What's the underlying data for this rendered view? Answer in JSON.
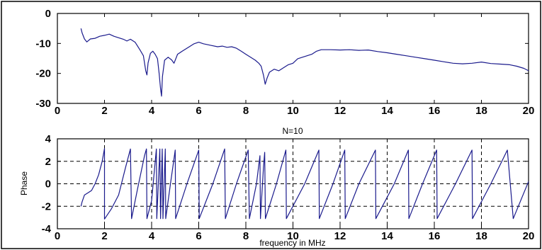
{
  "chart_data": [
    {
      "type": "line",
      "title": "",
      "xlabel": "",
      "ylabel": "",
      "xlim": [
        0,
        20
      ],
      "ylim": [
        -30,
        0
      ],
      "xticks": [
        0,
        2,
        4,
        6,
        8,
        10,
        12,
        14,
        16,
        18,
        20
      ],
      "yticks": [
        0,
        -10,
        -20,
        -30
      ],
      "grid": false,
      "series": [
        {
          "color": "#1a1a8c",
          "points": [
            [
              1.0,
              -5
            ],
            [
              1.05,
              -6.5
            ],
            [
              1.15,
              -8.5
            ],
            [
              1.25,
              -9.5
            ],
            [
              1.4,
              -8.5
            ],
            [
              1.6,
              -8.3
            ],
            [
              1.8,
              -7.6
            ],
            [
              2.0,
              -7.3
            ],
            [
              2.2,
              -6.9
            ],
            [
              2.4,
              -7.6
            ],
            [
              2.6,
              -8.1
            ],
            [
              2.8,
              -8.6
            ],
            [
              2.95,
              -9.2
            ],
            [
              3.1,
              -8.6
            ],
            [
              3.3,
              -9.6
            ],
            [
              3.5,
              -12.1
            ],
            [
              3.65,
              -14.1
            ],
            [
              3.75,
              -19.1
            ],
            [
              3.8,
              -20.5
            ],
            [
              3.85,
              -16.5
            ],
            [
              3.95,
              -13.3
            ],
            [
              4.05,
              -12.6
            ],
            [
              4.15,
              -13.6
            ],
            [
              4.25,
              -15.1
            ],
            [
              4.32,
              -20
            ],
            [
              4.38,
              -25.1
            ],
            [
              4.42,
              -27.6
            ],
            [
              4.46,
              -21
            ],
            [
              4.55,
              -15.6
            ],
            [
              4.7,
              -14.6
            ],
            [
              4.85,
              -15.5
            ],
            [
              4.95,
              -16.6
            ],
            [
              5.1,
              -13.6
            ],
            [
              5.3,
              -12.6
            ],
            [
              5.6,
              -11.1
            ],
            [
              5.8,
              -10.1
            ],
            [
              6.0,
              -9.6
            ],
            [
              6.2,
              -10.1
            ],
            [
              6.5,
              -10.6
            ],
            [
              6.8,
              -11.1
            ],
            [
              7.0,
              -10.9
            ],
            [
              7.2,
              -11.3
            ],
            [
              7.4,
              -11.1
            ],
            [
              7.6,
              -11.6
            ],
            [
              7.8,
              -12.6
            ],
            [
              8.0,
              -13.6
            ],
            [
              8.2,
              -14.6
            ],
            [
              8.4,
              -15.6
            ],
            [
              8.55,
              -16.6
            ],
            [
              8.65,
              -17.6
            ],
            [
              8.75,
              -20.6
            ],
            [
              8.82,
              -23.6
            ],
            [
              8.9,
              -21.6
            ],
            [
              9.0,
              -19.6
            ],
            [
              9.2,
              -18.6
            ],
            [
              9.4,
              -19.1
            ],
            [
              9.6,
              -18.1
            ],
            [
              9.8,
              -17.1
            ],
            [
              10.0,
              -16.6
            ],
            [
              10.2,
              -15.1
            ],
            [
              10.4,
              -14.6
            ],
            [
              10.6,
              -14.1
            ],
            [
              10.8,
              -13.6
            ],
            [
              11.0,
              -12.6
            ],
            [
              11.2,
              -12.1
            ],
            [
              11.6,
              -12.1
            ],
            [
              12.0,
              -12.2
            ],
            [
              12.4,
              -12.1
            ],
            [
              12.8,
              -12.3
            ],
            [
              13.2,
              -12.2
            ],
            [
              13.6,
              -12.7
            ],
            [
              14.0,
              -13.1
            ],
            [
              14.4,
              -13.6
            ],
            [
              14.8,
              -14.1
            ],
            [
              15.2,
              -14.6
            ],
            [
              15.6,
              -15.1
            ],
            [
              16.0,
              -15.6
            ],
            [
              16.4,
              -16.1
            ],
            [
              16.8,
              -16.6
            ],
            [
              17.2,
              -16.8
            ],
            [
              17.6,
              -16.6
            ],
            [
              18.0,
              -16.2
            ],
            [
              18.4,
              -16.7
            ],
            [
              18.8,
              -16.9
            ],
            [
              19.2,
              -17.1
            ],
            [
              19.5,
              -17.6
            ],
            [
              19.8,
              -18.3
            ],
            [
              20.0,
              -19.1
            ]
          ]
        }
      ]
    },
    {
      "type": "line",
      "title": "N=10",
      "xlabel": "frequency in MHz",
      "ylabel": "Phase",
      "xlim": [
        0,
        20
      ],
      "ylim": [
        -4,
        4
      ],
      "xticks": [
        0,
        2,
        4,
        6,
        8,
        10,
        12,
        14,
        16,
        18,
        20
      ],
      "yticks": [
        4,
        2,
        0,
        -2,
        -4
      ],
      "grid": "dashed at x = 2, 4, …, 18 and y = -2, 0, 2",
      "series": [
        {
          "color": "#1a1a8c",
          "points": [
            [
              1.0,
              -2
            ],
            [
              1.05,
              -1.6
            ],
            [
              1.15,
              -1.0
            ],
            [
              1.3,
              -0.8
            ],
            [
              1.45,
              -0.6
            ],
            [
              1.6,
              0.0
            ],
            [
              1.75,
              0.8
            ],
            [
              1.9,
              2.0
            ],
            [
              2.0,
              3.14
            ],
            [
              2.0,
              -3.14
            ],
            [
              2.3,
              -2.2
            ],
            [
              2.6,
              -1.0
            ],
            [
              2.9,
              1.5
            ],
            [
              3.1,
              3.1
            ],
            [
              3.15,
              -3.1
            ],
            [
              3.4,
              -0.5
            ],
            [
              3.7,
              2.5
            ],
            [
              3.78,
              3.1
            ],
            [
              3.8,
              -3.1
            ],
            [
              4.0,
              -1.5
            ],
            [
              4.2,
              3.1
            ],
            [
              4.22,
              -3.1
            ],
            [
              4.35,
              3.1
            ],
            [
              4.38,
              -3.1
            ],
            [
              4.45,
              3.1
            ],
            [
              4.48,
              -3.1
            ],
            [
              4.58,
              3.1
            ],
            [
              4.6,
              -3.1
            ],
            [
              4.8,
              0.0
            ],
            [
              5.0,
              3.0
            ],
            [
              5.02,
              -3.1
            ],
            [
              5.5,
              0.0
            ],
            [
              6.0,
              3.0
            ],
            [
              6.02,
              -3.1
            ],
            [
              6.6,
              0.0
            ],
            [
              7.1,
              3.1
            ],
            [
              7.13,
              -3.1
            ],
            [
              7.6,
              0.0
            ],
            [
              8.1,
              3.0
            ],
            [
              8.15,
              -3.1
            ],
            [
              8.45,
              0.0
            ],
            [
              8.6,
              2.5
            ],
            [
              8.62,
              -3.1
            ],
            [
              8.75,
              1.5
            ],
            [
              8.8,
              2.8
            ],
            [
              8.83,
              -3.1
            ],
            [
              9.3,
              0.0
            ],
            [
              9.7,
              3.0
            ],
            [
              9.72,
              -3.1
            ],
            [
              10.5,
              0.0
            ],
            [
              11.1,
              3.0
            ],
            [
              11.12,
              -3.1
            ],
            [
              11.7,
              0.0
            ],
            [
              12.2,
              3.0
            ],
            [
              12.22,
              -3.1
            ],
            [
              12.8,
              0.0
            ],
            [
              13.5,
              3.0
            ],
            [
              13.52,
              -3.1
            ],
            [
              14.3,
              0.0
            ],
            [
              14.9,
              3.0
            ],
            [
              14.92,
              -3.1
            ],
            [
              15.5,
              0.0
            ],
            [
              16.1,
              3.0
            ],
            [
              16.12,
              -3.1
            ],
            [
              16.9,
              0.0
            ],
            [
              17.6,
              3.0
            ],
            [
              17.62,
              -3.1
            ],
            [
              18.4,
              0.0
            ],
            [
              19.1,
              3.0
            ],
            [
              19.35,
              -3.1
            ],
            [
              20.0,
              0.2
            ]
          ]
        }
      ]
    }
  ]
}
